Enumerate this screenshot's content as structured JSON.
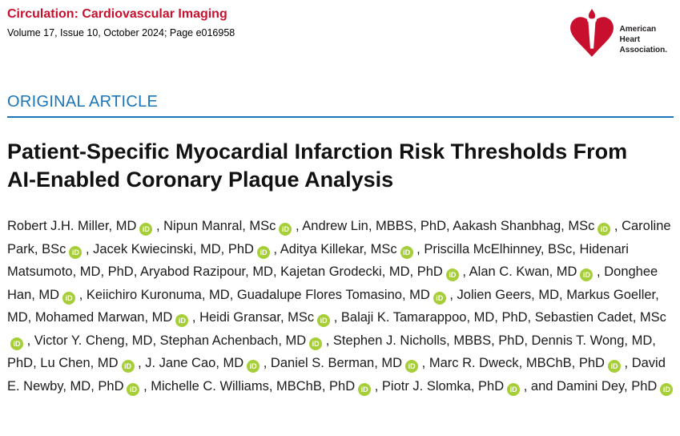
{
  "journal": {
    "name": "Circulation: Cardiovascular Imaging",
    "issue_info": "Volume 17, Issue 10, October 2024; Page e016958"
  },
  "logo": {
    "line1": "American",
    "line2": "Heart",
    "line3": "Association."
  },
  "article": {
    "category": "ORIGINAL ARTICLE",
    "title": "Patient-Specific Myocardial Infarction Risk Thresholds From AI-Enabled Coronary Plaque Analysis"
  },
  "orcid_label": "iD",
  "colors": {
    "journal_red": "#C8102E",
    "category_blue": "#1B75BB",
    "orcid_green": "#A6CE39"
  },
  "authors": [
    {
      "name": "Robert J.H. Miller, MD",
      "orcid": true
    },
    {
      "name": "Nipun Manral, MSc",
      "orcid": true
    },
    {
      "name": "Andrew Lin, MBBS, PhD",
      "orcid": false
    },
    {
      "name": "Aakash Shanbhag, MSc",
      "orcid": true
    },
    {
      "name": "Caroline Park, BSc",
      "orcid": true
    },
    {
      "name": "Jacek Kwiecinski, MD, PhD",
      "orcid": true
    },
    {
      "name": "Aditya Killekar, MSc",
      "orcid": true
    },
    {
      "name": "Priscilla McElhinney, BSc",
      "orcid": false
    },
    {
      "name": "Hidenari Matsumoto, MD, PhD",
      "orcid": false
    },
    {
      "name": "Aryabod Razipour, MD",
      "orcid": false
    },
    {
      "name": "Kajetan Grodecki, MD, PhD",
      "orcid": true
    },
    {
      "name": "Alan C. Kwan, MD",
      "orcid": true
    },
    {
      "name": "Donghee Han, MD",
      "orcid": true
    },
    {
      "name": "Keiichiro Kuronuma, MD",
      "orcid": false
    },
    {
      "name": "Guadalupe Flores Tomasino, MD",
      "orcid": true
    },
    {
      "name": "Jolien Geers, MD",
      "orcid": false
    },
    {
      "name": "Markus Goeller, MD",
      "orcid": false
    },
    {
      "name": "Mohamed Marwan, MD",
      "orcid": true
    },
    {
      "name": "Heidi Gransar, MSc",
      "orcid": true
    },
    {
      "name": "Balaji K. Tamarappoo, MD, PhD",
      "orcid": false
    },
    {
      "name": "Sebastien Cadet, MSc",
      "orcid": true
    },
    {
      "name": "Victor Y. Cheng, MD",
      "orcid": false
    },
    {
      "name": "Stephan Achenbach, MD",
      "orcid": true
    },
    {
      "name": "Stephen J. Nicholls, MBBS, PhD",
      "orcid": false
    },
    {
      "name": "Dennis T. Wong, MD, PhD",
      "orcid": false
    },
    {
      "name": "Lu Chen, MD",
      "orcid": true
    },
    {
      "name": "J. Jane Cao, MD",
      "orcid": true
    },
    {
      "name": "Daniel S. Berman, MD",
      "orcid": true
    },
    {
      "name": "Marc R. Dweck, MBChB, PhD",
      "orcid": true
    },
    {
      "name": "David E. Newby, MD, PhD",
      "orcid": true
    },
    {
      "name": "Michelle C. Williams, MBChB, PhD",
      "orcid": true
    },
    {
      "name": "Piotr J. Slomka, PhD",
      "orcid": true
    },
    {
      "name": "Damini Dey, PhD",
      "orcid": true
    }
  ]
}
